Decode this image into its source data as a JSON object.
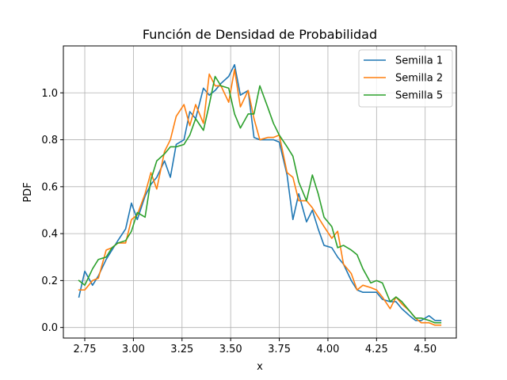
{
  "chart_data": {
    "type": "line",
    "title": "Función de Densidad de Probabilidad",
    "xlabel": "x",
    "ylabel": "PDF",
    "xlim": [
      2.64,
      4.66
    ],
    "ylim": [
      -0.045,
      1.2
    ],
    "xticks": [
      2.75,
      3.0,
      3.25,
      3.5,
      3.75,
      4.0,
      4.25,
      4.5
    ],
    "xtick_labels": [
      "2.75",
      "3.00",
      "3.25",
      "3.50",
      "3.75",
      "4.00",
      "4.25",
      "4.50"
    ],
    "yticks": [
      0.0,
      0.2,
      0.4,
      0.6,
      0.8,
      1.0
    ],
    "ytick_labels": [
      "0.0",
      "0.2",
      "0.4",
      "0.6",
      "0.8",
      "1.0"
    ],
    "grid": true,
    "legend_position": "top-right",
    "series": [
      {
        "name": "Semilla 1",
        "color": "#1f77b4",
        "x": [
          2.72,
          2.75,
          2.79,
          2.82,
          2.86,
          2.89,
          2.92,
          2.96,
          2.99,
          3.02,
          3.06,
          3.09,
          3.12,
          3.16,
          3.19,
          3.22,
          3.26,
          3.29,
          3.32,
          3.36,
          3.39,
          3.42,
          3.45,
          3.49,
          3.52,
          3.55,
          3.59,
          3.62,
          3.65,
          3.69,
          3.72,
          3.75,
          3.79,
          3.82,
          3.85,
          3.89,
          3.92,
          3.95,
          3.98,
          4.02,
          4.05,
          4.08,
          4.12,
          4.15,
          4.18,
          4.22,
          4.25,
          4.28,
          4.32,
          4.35,
          4.38,
          4.42,
          4.45,
          4.48,
          4.52,
          4.55,
          4.58
        ],
        "y": [
          0.13,
          0.24,
          0.18,
          0.22,
          0.29,
          0.33,
          0.37,
          0.42,
          0.53,
          0.46,
          0.56,
          0.61,
          0.64,
          0.71,
          0.64,
          0.78,
          0.8,
          0.92,
          0.89,
          1.02,
          0.99,
          1.01,
          1.04,
          1.07,
          1.12,
          0.99,
          1.01,
          0.81,
          0.8,
          0.8,
          0.8,
          0.79,
          0.65,
          0.46,
          0.57,
          0.45,
          0.5,
          0.42,
          0.35,
          0.34,
          0.3,
          0.27,
          0.2,
          0.16,
          0.15,
          0.15,
          0.15,
          0.12,
          0.11,
          0.11,
          0.08,
          0.05,
          0.03,
          0.03,
          0.05,
          0.03,
          0.03
        ]
      },
      {
        "name": "Semilla 2",
        "color": "#ff7f0e",
        "x": [
          2.72,
          2.75,
          2.79,
          2.82,
          2.86,
          2.89,
          2.92,
          2.96,
          2.99,
          3.02,
          3.06,
          3.09,
          3.12,
          3.16,
          3.19,
          3.22,
          3.26,
          3.29,
          3.32,
          3.36,
          3.39,
          3.42,
          3.45,
          3.49,
          3.52,
          3.55,
          3.59,
          3.62,
          3.65,
          3.69,
          3.72,
          3.75,
          3.79,
          3.82,
          3.85,
          3.89,
          3.92,
          3.95,
          3.98,
          4.02,
          4.05,
          4.08,
          4.12,
          4.15,
          4.18,
          4.22,
          4.25,
          4.28,
          4.32,
          4.35,
          4.38,
          4.42,
          4.45,
          4.48,
          4.52,
          4.55,
          4.58
        ],
        "y": [
          0.16,
          0.16,
          0.2,
          0.21,
          0.33,
          0.34,
          0.36,
          0.36,
          0.46,
          0.48,
          0.57,
          0.66,
          0.59,
          0.75,
          0.8,
          0.9,
          0.95,
          0.86,
          0.95,
          0.87,
          1.08,
          1.03,
          1.03,
          0.96,
          1.1,
          0.94,
          1.01,
          0.89,
          0.8,
          0.81,
          0.81,
          0.82,
          0.66,
          0.64,
          0.54,
          0.54,
          0.51,
          0.47,
          0.43,
          0.38,
          0.41,
          0.27,
          0.23,
          0.16,
          0.18,
          0.17,
          0.16,
          0.13,
          0.08,
          0.13,
          0.1,
          0.07,
          0.04,
          0.02,
          0.02,
          0.01,
          0.01
        ]
      },
      {
        "name": "Semilla 5",
        "color": "#2ca02c",
        "x": [
          2.72,
          2.75,
          2.79,
          2.82,
          2.86,
          2.89,
          2.92,
          2.96,
          2.99,
          3.02,
          3.06,
          3.09,
          3.12,
          3.16,
          3.19,
          3.22,
          3.26,
          3.29,
          3.32,
          3.36,
          3.39,
          3.42,
          3.45,
          3.49,
          3.52,
          3.55,
          3.59,
          3.62,
          3.65,
          3.69,
          3.72,
          3.75,
          3.79,
          3.82,
          3.85,
          3.89,
          3.92,
          3.95,
          3.98,
          4.02,
          4.05,
          4.08,
          4.12,
          4.15,
          4.18,
          4.22,
          4.25,
          4.28,
          4.32,
          4.35,
          4.38,
          4.42,
          4.45,
          4.48,
          4.52,
          4.55,
          4.58
        ],
        "y": [
          0.2,
          0.18,
          0.25,
          0.29,
          0.3,
          0.34,
          0.36,
          0.37,
          0.41,
          0.49,
          0.47,
          0.63,
          0.71,
          0.74,
          0.77,
          0.77,
          0.78,
          0.82,
          0.89,
          0.84,
          0.95,
          1.07,
          1.03,
          1.02,
          0.91,
          0.85,
          0.91,
          0.91,
          1.03,
          0.94,
          0.87,
          0.82,
          0.77,
          0.73,
          0.62,
          0.54,
          0.65,
          0.57,
          0.47,
          0.43,
          0.34,
          0.35,
          0.33,
          0.31,
          0.25,
          0.19,
          0.2,
          0.19,
          0.11,
          0.13,
          0.11,
          0.07,
          0.04,
          0.04,
          0.03,
          0.02,
          0.02
        ]
      }
    ]
  }
}
